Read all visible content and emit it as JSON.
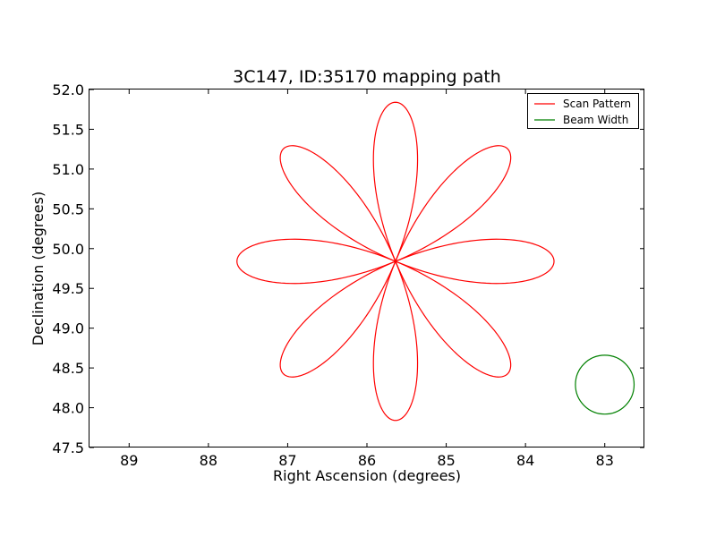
{
  "chart_data": {
    "type": "line",
    "title": "3C147, ID:35170 mapping path",
    "xlabel": "Right Ascension (degrees)",
    "ylabel": "Declination (degrees)",
    "xlim": [
      89.5,
      82.5
    ],
    "ylim": [
      47.5,
      52.0
    ],
    "x_inverted": true,
    "x_ticks": [
      "89",
      "88",
      "87",
      "86",
      "85",
      "84",
      "83"
    ],
    "y_ticks": [
      "47.5",
      "48.0",
      "48.5",
      "49.0",
      "49.5",
      "50.0",
      "50.5",
      "51.0",
      "51.5",
      "52.0"
    ],
    "grid": false,
    "legend_position": "upper right",
    "series": [
      {
        "name": "Scan Pattern",
        "color": "#ff0000",
        "shape": "rose",
        "center": [
          85.64,
          49.84
        ],
        "petals": 8,
        "petal_angles_deg": [
          90,
          45,
          0,
          -45,
          -90,
          -135,
          180,
          135
        ],
        "max_radius": 2.0
      },
      {
        "name": "Beam Width",
        "color": "#008000",
        "shape": "circle",
        "center": [
          83.0,
          48.29
        ],
        "radius": 0.37
      }
    ]
  }
}
